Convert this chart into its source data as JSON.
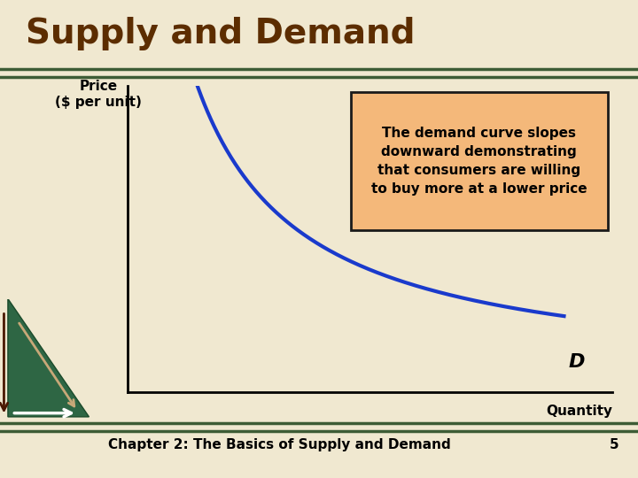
{
  "title": "Supply and Demand",
  "title_color": "#5C2D00",
  "title_fontsize": 28,
  "bg_color": "#F0E8D0",
  "header_line_color": "#3D5C35",
  "footer_line_color": "#3D5C35",
  "ylabel": "Price\n($ per unit)",
  "xlabel": "Quantity",
  "label_fontsize": 11,
  "curve_color": "#1A3ACC",
  "curve_linewidth": 3.0,
  "D_label": "D",
  "D_label_fontsize": 16,
  "annotation_text": "The demand curve slopes\ndownward demonstrating\nthat consumers are willing\nto buy more at a lower price",
  "annotation_fontsize": 11,
  "annotation_box_color": "#F4B87A",
  "annotation_box_edge_color": "#1A1A1A",
  "footer_text": "Chapter 2: The Basics of Supply and Demand",
  "footer_number": "5",
  "footer_fontsize": 11,
  "triangle_fill_color": "#2E6644",
  "triangle_edge_color": "#1A4A2A"
}
